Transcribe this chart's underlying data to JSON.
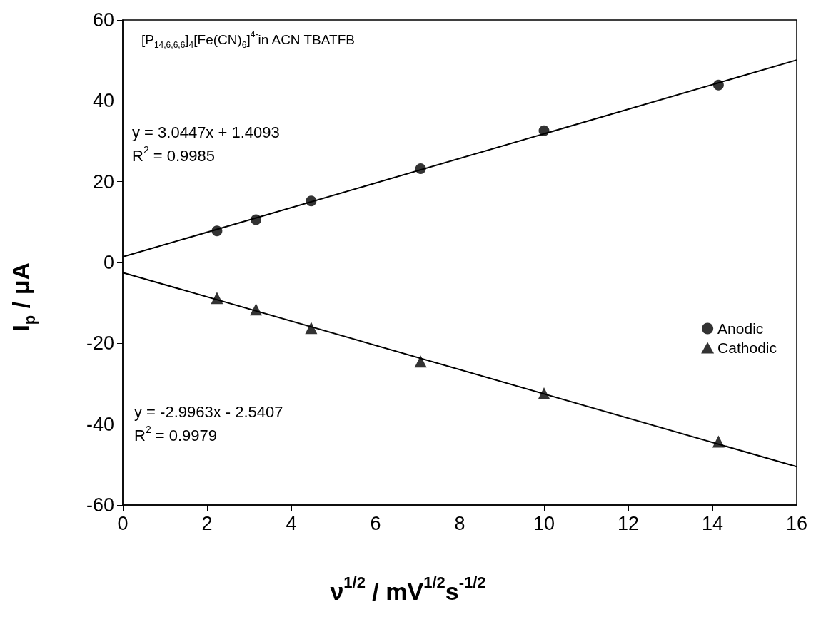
{
  "chart_data": {
    "type": "scatter",
    "title": "[P$_{14,6,6,6}$]$_{4}$[Fe(CN)$_{6}$]$^{4-}$in ACN TBATFB",
    "xlabel": "ν$^{1/2}$ / mV$^{1/2}$s$^{-1/2}$",
    "ylabel": "I$_{p}$ / μA",
    "xlim": [
      0,
      16
    ],
    "xticks": [
      0,
      2,
      4,
      6,
      8,
      10,
      12,
      14,
      16
    ],
    "ylim": [
      -60,
      60
    ],
    "yticks": [
      -60,
      -40,
      -20,
      0,
      20,
      40,
      60
    ],
    "grid": false,
    "legend": "right",
    "annotations": [
      "y = 3.0447x + 1.4093",
      "R$^{2}$ = 0.9985",
      "y = -2.9963x - 2.5407",
      "R$^{2}$ = 0.9979"
    ],
    "series": [
      {
        "name": "Anodic",
        "type": "scatter",
        "marker": "circle",
        "color": "#000000",
        "x": [
          2.236,
          3.162,
          4.472,
          7.071,
          10,
          14.142
        ],
        "values": [
          7.8,
          10.6,
          15.2,
          23.2,
          32.6,
          43.9
        ]
      },
      {
        "name": "Cathodic",
        "type": "scatter",
        "marker": "triangle",
        "color": "#000000",
        "x": [
          2.236,
          3.162,
          4.472,
          7.071,
          10,
          14.142
        ],
        "values": [
          -8.8,
          -11.6,
          -16.2,
          -24.5,
          -32.4,
          -44.3
        ]
      },
      {
        "type": "line",
        "marker": "none",
        "line_style": "solid",
        "color": "#000000",
        "x": [
          0,
          16
        ],
        "values": [
          1.4,
          50.1
        ]
      },
      {
        "type": "line",
        "marker": "none",
        "line_style": "solid",
        "color": "#000000",
        "x": [
          0,
          16
        ],
        "values": [
          -2.5,
          -50.5
        ]
      }
    ]
  }
}
